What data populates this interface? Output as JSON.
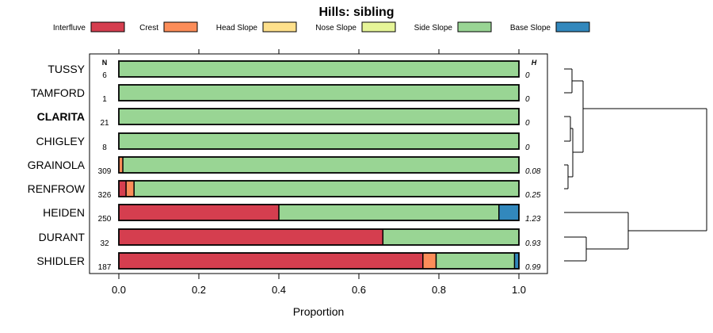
{
  "chart_data": {
    "type": "bar",
    "orientation": "horizontal",
    "stacked": true,
    "title": "Hills: sibling",
    "xlabel": "Proportion",
    "ylabel": "",
    "xlim": [
      0,
      1
    ],
    "x_ticks": [
      "0.0",
      "0.2",
      "0.4",
      "0.6",
      "0.8",
      "1.0"
    ],
    "legend_position": "top",
    "column_headers": {
      "n": "N",
      "h": "H"
    },
    "legend": [
      {
        "key": "interfluve",
        "label": "Interfluve",
        "color": "#D53E4F"
      },
      {
        "key": "crest",
        "label": "Crest",
        "color": "#FC8D59"
      },
      {
        "key": "head_slope",
        "label": "Head Slope",
        "color": "#FEE08B"
      },
      {
        "key": "nose_slope",
        "label": "Nose Slope",
        "color": "#E6F598"
      },
      {
        "key": "side_slope",
        "label": "Side Slope",
        "color": "#99D594"
      },
      {
        "key": "base_slope",
        "label": "Base Slope",
        "color": "#3288BD"
      }
    ],
    "categories": [
      "TUSSY",
      "TAMFORD",
      "CLARITA",
      "CHIGLEY",
      "GRAINOLA",
      "RENFROW",
      "HEIDEN",
      "DURANT",
      "SHIDLER"
    ],
    "highlight": "CLARITA",
    "n": [
      "6",
      "1",
      "21",
      "8",
      "309",
      "326",
      "250",
      "32",
      "187"
    ],
    "h": [
      "0",
      "0",
      "0",
      "0",
      "0.08",
      "0.25",
      "1.23",
      "0.93",
      "0.99"
    ],
    "series": [
      {
        "name": "Interfluve",
        "values": [
          0,
          0,
          0,
          0,
          0,
          0.018,
          0.4,
          0.66,
          0.76
        ]
      },
      {
        "name": "Crest",
        "values": [
          0,
          0,
          0,
          0,
          0.01,
          0.02,
          0,
          0,
          0.033
        ]
      },
      {
        "name": "Head Slope",
        "values": [
          0,
          0,
          0,
          0,
          0,
          0,
          0,
          0,
          0
        ]
      },
      {
        "name": "Nose Slope",
        "values": [
          0,
          0,
          0,
          0,
          0,
          0,
          0,
          0,
          0
        ]
      },
      {
        "name": "Side Slope",
        "values": [
          1,
          1,
          1,
          1,
          0.99,
          0.962,
          0.55,
          0.34,
          0.196
        ]
      },
      {
        "name": "Base Slope",
        "values": [
          0,
          0,
          0,
          0,
          0,
          0,
          0.05,
          0,
          0.011
        ]
      }
    ],
    "dendrogram": "hierarchical clustering of series on the right"
  }
}
